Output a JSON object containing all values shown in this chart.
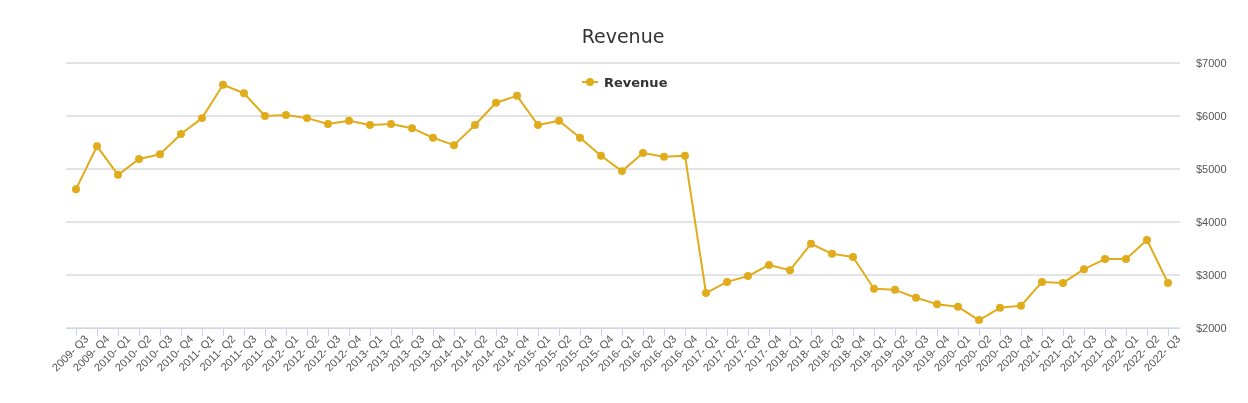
{
  "chart_data": {
    "type": "line",
    "title": "Revenue",
    "categories": [
      "2009- Q3",
      "2009- Q4",
      "2010- Q1",
      "2010- Q2",
      "2010- Q3",
      "2010- Q4",
      "2011- Q1",
      "2011- Q2",
      "2011- Q3",
      "2011- Q4",
      "2012- Q1",
      "2012- Q2",
      "2012- Q3",
      "2012- Q4",
      "2013- Q1",
      "2013- Q2",
      "2013- Q3",
      "2013- Q4",
      "2014- Q1",
      "2014- Q2",
      "2014- Q3",
      "2014- Q4",
      "2015- Q1",
      "2015- Q2",
      "2015- Q3",
      "2015- Q4",
      "2016- Q1",
      "2016- Q2",
      "2016- Q3",
      "2016- Q4",
      "2017- Q1",
      "2017- Q2",
      "2017- Q3",
      "2017- Q4",
      "2018- Q1",
      "2018- Q2",
      "2018- Q3",
      "2018- Q4",
      "2019- Q1",
      "2019- Q2",
      "2019- Q3",
      "2019- Q4",
      "2020- Q1",
      "2020- Q2",
      "2020- Q3",
      "2020- Q4",
      "2021- Q1",
      "2021- Q2",
      "2021- Q3",
      "2021- Q4",
      "2022- Q1",
      "2022- Q2",
      "2022- Q3"
    ],
    "series": [
      {
        "name": "Revenue",
        "color": "#e1ac1c",
        "values": [
          4620,
          5430,
          4890,
          5190,
          5280,
          5660,
          5960,
          6590,
          6430,
          6000,
          6020,
          5960,
          5850,
          5910,
          5830,
          5850,
          5770,
          5590,
          5450,
          5830,
          6250,
          6380,
          5830,
          5910,
          5590,
          5250,
          4960,
          5300,
          5230,
          5250,
          2660,
          2870,
          2980,
          3190,
          3090,
          3590,
          3400,
          3340,
          2740,
          2720,
          2570,
          2450,
          2400,
          2150,
          2380,
          2420,
          2870,
          2850,
          3110,
          3300,
          3300,
          3660,
          2850
        ]
      }
    ],
    "ylim": [
      2000,
      7000
    ],
    "yticks": [
      {
        "value": 2000,
        "label": "$2000"
      },
      {
        "value": 3000,
        "label": "$3000"
      },
      {
        "value": 4000,
        "label": "$4000"
      },
      {
        "value": 5000,
        "label": "$5000"
      },
      {
        "value": 6000,
        "label": "$6000"
      },
      {
        "value": 7000,
        "label": "$7000"
      }
    ],
    "grid": "y",
    "legend": "top",
    "marker": "circle",
    "line_style": "solid"
  }
}
